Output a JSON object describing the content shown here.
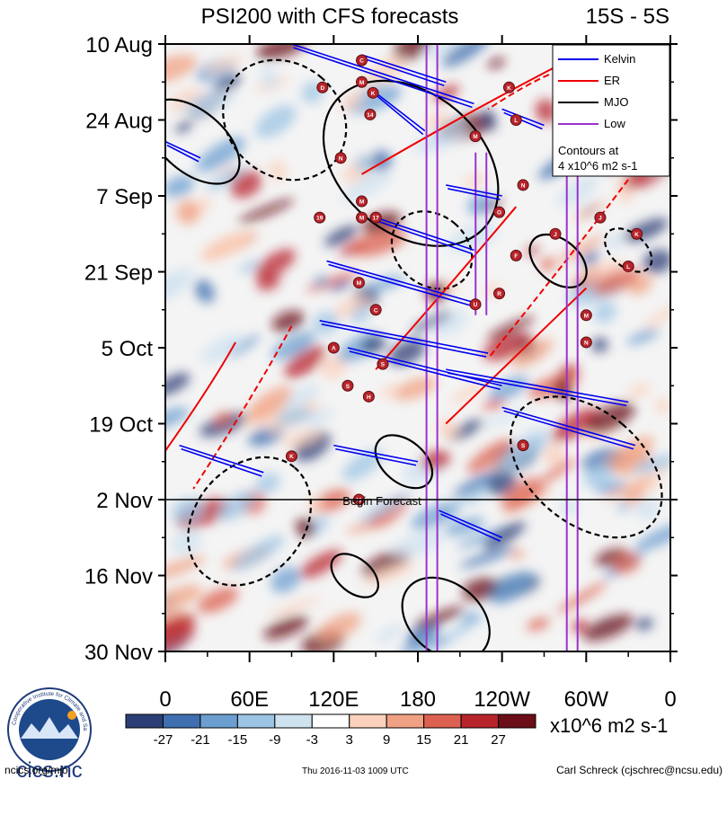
{
  "chart_data": {
    "type": "heatmap",
    "title": "PSI200 with CFS forecasts",
    "lat_band": "15S - 5S",
    "y_tick_labels": [
      "10 Aug",
      "24 Aug",
      "7 Sep",
      "21 Sep",
      "5 Oct",
      "19 Oct",
      "2 Nov",
      "16 Nov",
      "30 Nov"
    ],
    "x_tick_labels": [
      "0",
      "60E",
      "120E",
      "180",
      "120W",
      "60W",
      "0"
    ],
    "x_range_deg_east": [
      0,
      360
    ],
    "y_range_days": [
      0,
      112
    ],
    "forecast_start_day": 84,
    "forecast_label": "Begin Forecast",
    "legend": {
      "entries": [
        {
          "label": "Kelvin",
          "color": "#0000ee"
        },
        {
          "label": "ER",
          "color": "#ee0000"
        },
        {
          "label": "MJO",
          "color": "#000000"
        },
        {
          "label": "Low",
          "color": "#9933cc"
        }
      ],
      "note_line1": "Contours at",
      "note_line2": "4 x10^6 m2 s-1"
    },
    "colorbar": {
      "levels": [
        "-27",
        "-21",
        "-15",
        "-9",
        "-3",
        "3",
        "9",
        "15",
        "21",
        "27"
      ],
      "colors": [
        "#2b3f76",
        "#3f6fb0",
        "#6c9fd0",
        "#9cc4e4",
        "#cfe2f0",
        "#ffffff",
        "#fbd0bc",
        "#f0a183",
        "#dd6150",
        "#b8242b",
        "#6b0e18"
      ],
      "units": "x10^6 m2 s-1"
    },
    "kelvin_waves": [
      {
        "start": [
          90,
          0
        ],
        "end": [
          220,
          11
        ]
      },
      {
        "start": [
          140,
          2
        ],
        "end": [
          200,
          7
        ]
      },
      {
        "start": [
          150,
          9
        ],
        "end": [
          185,
          16
        ]
      },
      {
        "start": [
          240,
          12
        ],
        "end": [
          270,
          15
        ]
      },
      {
        "start": [
          0,
          18
        ],
        "end": [
          25,
          21
        ]
      },
      {
        "start": [
          200,
          26
        ],
        "end": [
          240,
          28
        ]
      },
      {
        "start": [
          150,
          32
        ],
        "end": [
          220,
          38
        ]
      },
      {
        "start": [
          115,
          40
        ],
        "end": [
          225,
          48
        ]
      },
      {
        "start": [
          110,
          51
        ],
        "end": [
          230,
          57
        ]
      },
      {
        "start": [
          130,
          56
        ],
        "end": [
          240,
          63
        ]
      },
      {
        "start": [
          200,
          60
        ],
        "end": [
          330,
          66
        ]
      },
      {
        "start": [
          240,
          67
        ],
        "end": [
          335,
          74
        ]
      },
      {
        "start": [
          10,
          74
        ],
        "end": [
          70,
          79
        ]
      },
      {
        "start": [
          120,
          74
        ],
        "end": [
          180,
          77
        ]
      },
      {
        "start": [
          195,
          86
        ],
        "end": [
          240,
          91
        ]
      }
    ],
    "er_waves": [
      {
        "start": [
          310,
          0
        ],
        "end": [
          140,
          24
        ]
      },
      {
        "start": [
          280,
          5
        ],
        "end": [
          230,
          12
        ]
      },
      {
        "start": [
          250,
          30
        ],
        "end": [
          150,
          60
        ]
      },
      {
        "start": [
          330,
          25
        ],
        "end": [
          230,
          58
        ]
      },
      {
        "start": [
          300,
          45
        ],
        "end": [
          200,
          70
        ]
      },
      {
        "start": [
          90,
          52
        ],
        "end": [
          20,
          82
        ]
      },
      {
        "start": [
          50,
          55
        ],
        "end": [
          0,
          75
        ]
      }
    ],
    "mjo": [
      {
        "center": [
          20,
          18
        ],
        "rx": 22,
        "ry": 10
      },
      {
        "center": [
          85,
          14
        ],
        "rx": 40,
        "ry": 12
      },
      {
        "center": [
          175,
          22
        ],
        "rx": 50,
        "ry": 18
      },
      {
        "center": [
          190,
          38
        ],
        "rx": 25,
        "ry": 8
      },
      {
        "center": [
          280,
          40
        ],
        "rx": 15,
        "ry": 6
      },
      {
        "center": [
          330,
          38
        ],
        "rx": 12,
        "ry": 5
      },
      {
        "center": [
          170,
          77
        ],
        "rx": 15,
        "ry": 6
      },
      {
        "center": [
          60,
          88
        ],
        "rx": 50,
        "ry": 10
      },
      {
        "center": [
          200,
          106
        ],
        "rx": 25,
        "ry": 9
      },
      {
        "center": [
          300,
          78
        ],
        "rx": 40,
        "ry": 16
      },
      {
        "center": [
          135,
          98
        ],
        "rx": 12,
        "ry": 5
      }
    ],
    "low": [
      {
        "start": [
          190,
          0
        ],
        "end": [
          190,
          112
        ]
      },
      {
        "start": [
          225,
          20
        ],
        "end": [
          225,
          50
        ]
      },
      {
        "start": [
          290,
          0
        ],
        "end": [
          290,
          112
        ]
      }
    ],
    "storms": [
      {
        "label": "C",
        "lon": 140,
        "day": 3
      },
      {
        "label": "M",
        "lon": 140,
        "day": 7
      },
      {
        "label": "D",
        "lon": 112,
        "day": 8
      },
      {
        "label": "K",
        "lon": 148,
        "day": 9
      },
      {
        "label": "14",
        "lon": 146,
        "day": 13
      },
      {
        "label": "L",
        "lon": 250,
        "day": 14
      },
      {
        "label": "K",
        "lon": 245,
        "day": 8
      },
      {
        "label": "M",
        "lon": 221,
        "day": 17
      },
      {
        "label": "N",
        "lon": 125,
        "day": 21
      },
      {
        "label": "N",
        "lon": 255,
        "day": 26
      },
      {
        "label": "M",
        "lon": 140,
        "day": 29
      },
      {
        "label": "19",
        "lon": 110,
        "day": 32
      },
      {
        "label": "M",
        "lon": 140,
        "day": 32
      },
      {
        "label": "17",
        "lon": 150,
        "day": 32
      },
      {
        "label": "O",
        "lon": 238,
        "day": 31
      },
      {
        "label": "J",
        "lon": 278,
        "day": 35
      },
      {
        "label": "J",
        "lon": 310,
        "day": 32
      },
      {
        "label": "K",
        "lon": 336,
        "day": 35
      },
      {
        "label": "F",
        "lon": 250,
        "day": 39
      },
      {
        "label": "L",
        "lon": 330,
        "day": 41
      },
      {
        "label": "M",
        "lon": 138,
        "day": 44
      },
      {
        "label": "U",
        "lon": 221,
        "day": 48
      },
      {
        "label": "R",
        "lon": 238,
        "day": 46
      },
      {
        "label": "C",
        "lon": 150,
        "day": 49
      },
      {
        "label": "M",
        "lon": 300,
        "day": 50
      },
      {
        "label": "N",
        "lon": 300,
        "day": 55
      },
      {
        "label": "A",
        "lon": 120,
        "day": 56
      },
      {
        "label": "S",
        "lon": 155,
        "day": 59
      },
      {
        "label": "S",
        "lon": 130,
        "day": 63
      },
      {
        "label": "H",
        "lon": 145,
        "day": 65
      },
      {
        "label": "S",
        "lon": 255,
        "day": 74
      },
      {
        "label": "K",
        "lon": 90,
        "day": 76
      },
      {
        "label": "11",
        "lon": 138,
        "day": 84
      }
    ]
  },
  "footer": {
    "logo_text": "cics.nc",
    "logo_ring_text": "Cooperative Institute for Climate and Satellites",
    "url": "ncics.org/mjo",
    "timestamp": "Thu 2016-11-03 1009 UTC",
    "author": "Carl Schreck (cjschrec@ncsu.edu)"
  }
}
